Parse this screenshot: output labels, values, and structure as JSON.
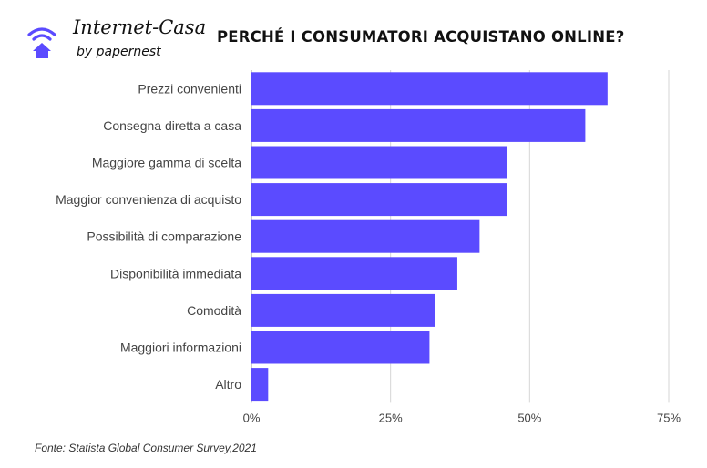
{
  "brand": {
    "name": "Internet-Casa",
    "sub": "by papernest",
    "icon": "wifi-house-icon",
    "color": "#5B4BFF"
  },
  "chart_data": {
    "type": "bar",
    "orientation": "horizontal",
    "title": "PERCHÉ I CONSUMATORI ACQUISTANO ONLINE?",
    "categories": [
      "Prezzi convenienti",
      "Consegna diretta a casa",
      "Maggiore gamma di scelta",
      "Maggior convenienza di acquisto",
      "Possibilità di comparazione",
      "Disponibilità immediata",
      "Comodità",
      "Maggiori informazioni",
      "Altro"
    ],
    "values": [
      64,
      60,
      46,
      46,
      41,
      37,
      33,
      32,
      3
    ],
    "xlim": [
      0,
      75
    ],
    "ticks": [
      0,
      25,
      50,
      75
    ],
    "tick_labels": [
      "0%",
      "25%",
      "50%",
      "75%"
    ],
    "grid": true,
    "bar_color": "#5B4BFF"
  },
  "source": "Fonte: Statista Global Consumer Survey,2021"
}
